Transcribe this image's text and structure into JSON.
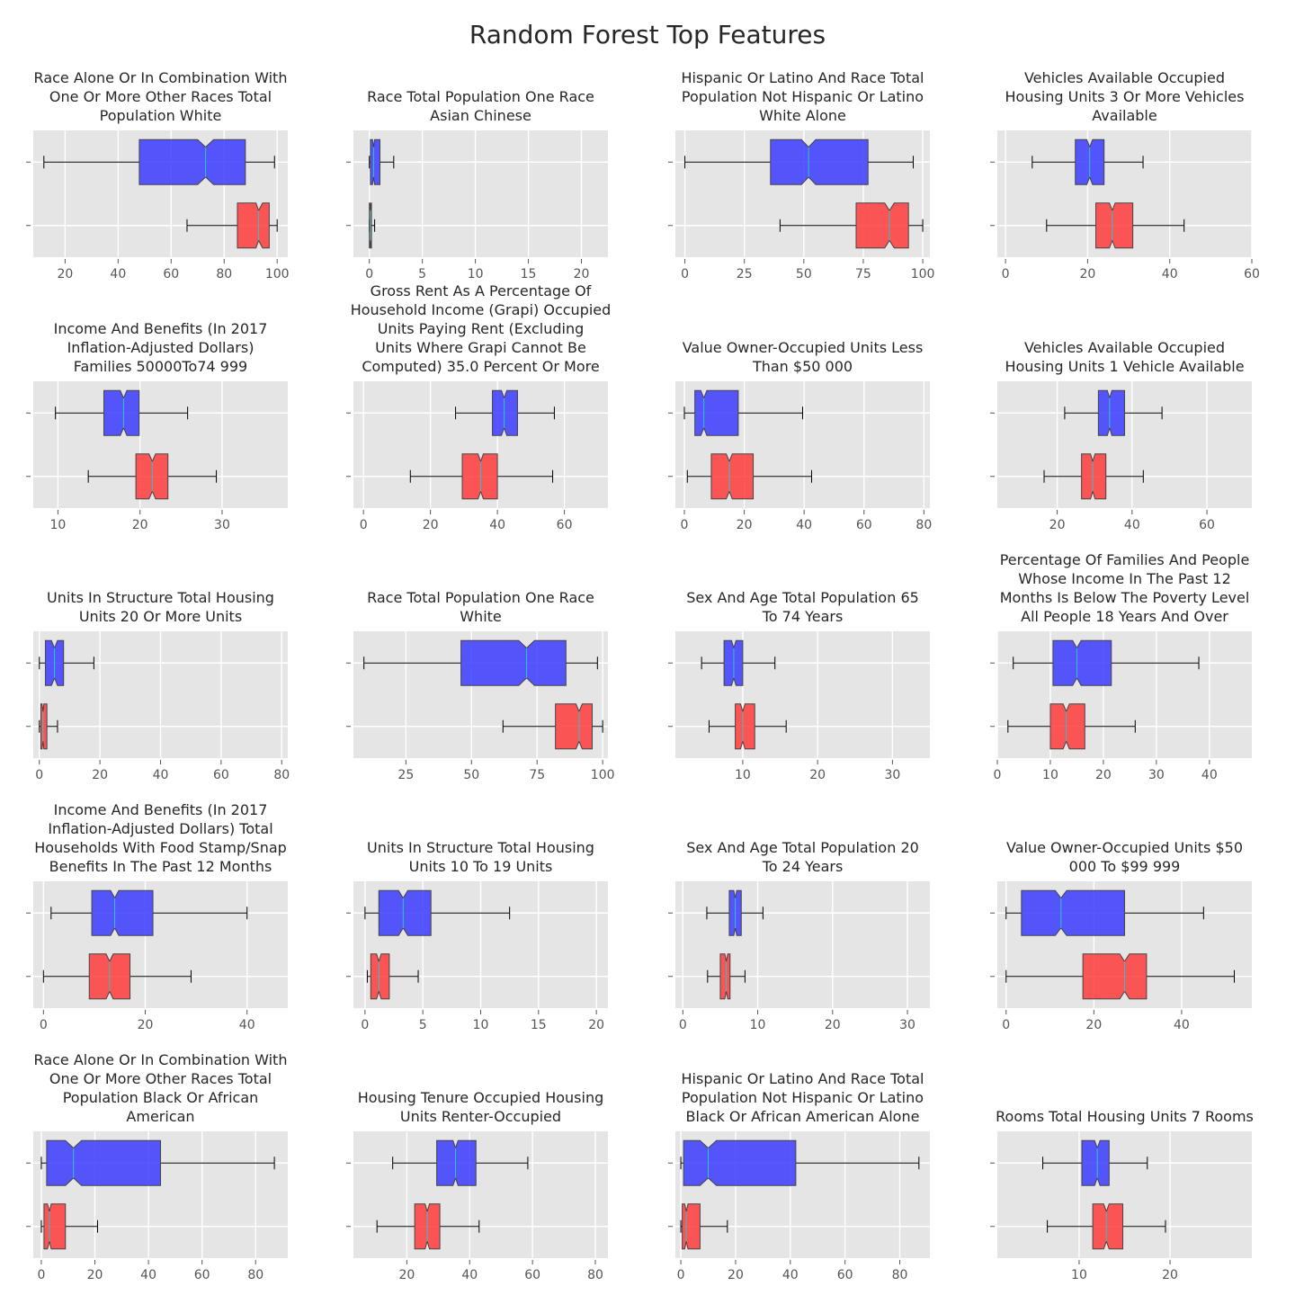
{
  "figure": {
    "title": "Random Forest Top Features"
  },
  "colors": {
    "panel_bg": "#e5e5e5",
    "grid": "#ffffff",
    "box_top": "#3b3bff",
    "box_bottom": "#ff3b3b",
    "box_alpha": 0.85,
    "median": "#2ec4c4",
    "text": "#262626",
    "tick": "#555555"
  },
  "chart_data": [
    {
      "type": "box",
      "title": "Race Alone Or In Combination With One Or More Other Races Total Population White",
      "xlim": [
        8,
        104
      ],
      "ticks": [
        20,
        40,
        60,
        80,
        100
      ],
      "boxes": [
        {
          "whislo": 12,
          "q1": 48,
          "med": 73,
          "q3": 88,
          "whishi": 99,
          "notch_lo": 70,
          "notch_hi": 76
        },
        {
          "whislo": 66,
          "q1": 85,
          "med": 93,
          "q3": 97,
          "whishi": 100,
          "notch_lo": 92,
          "notch_hi": 94.5
        }
      ]
    },
    {
      "type": "box",
      "title": "Race Total Population One Race Asian Chinese",
      "xlim": [
        -1.5,
        22.5
      ],
      "ticks": [
        0,
        5,
        10,
        15,
        20
      ],
      "boxes": [
        {
          "whislo": 0,
          "q1": 0.1,
          "med": 0.4,
          "q3": 1.0,
          "whishi": 2.3,
          "notch_lo": 0.3,
          "notch_hi": 0.5
        },
        {
          "whislo": 0,
          "q1": 0,
          "med": 0.1,
          "q3": 0.2,
          "whishi": 0.5,
          "notch_lo": 0.05,
          "notch_hi": 0.15
        }
      ]
    },
    {
      "type": "box",
      "title": "Hispanic Or Latino And Race Total Population Not Hispanic Or Latino White Alone",
      "xlim": [
        -4,
        103
      ],
      "ticks": [
        0,
        25,
        50,
        75,
        100
      ],
      "boxes": [
        {
          "whislo": 0,
          "q1": 36,
          "med": 52,
          "q3": 77,
          "whishi": 96,
          "notch_lo": 49,
          "notch_hi": 55
        },
        {
          "whislo": 40,
          "q1": 72,
          "med": 86,
          "q3": 94,
          "whishi": 100,
          "notch_lo": 84,
          "notch_hi": 88
        }
      ]
    },
    {
      "type": "box",
      "title": "Vehicles Available Occupied Housing Units 3 Or More Vehicles Available",
      "xlim": [
        -2,
        60
      ],
      "ticks": [
        0,
        20,
        40,
        60
      ],
      "boxes": [
        {
          "whislo": 6.5,
          "q1": 17,
          "med": 20.5,
          "q3": 24,
          "whishi": 33.5,
          "notch_lo": 19.8,
          "notch_hi": 21.2
        },
        {
          "whislo": 10,
          "q1": 22,
          "med": 26,
          "q3": 31,
          "whishi": 43.5,
          "notch_lo": 25.3,
          "notch_hi": 26.7
        }
      ]
    },
    {
      "type": "box",
      "title": "Income And Benefits (In 2017 Inflation-Adjusted Dollars) Families 50000To74 999",
      "xlim": [
        7,
        38
      ],
      "ticks": [
        10,
        20,
        30
      ],
      "boxes": [
        {
          "whislo": 9.7,
          "q1": 15.6,
          "med": 18,
          "q3": 19.9,
          "whishi": 25.8,
          "notch_lo": 17.6,
          "notch_hi": 18.4
        },
        {
          "whislo": 13.7,
          "q1": 19.5,
          "med": 21.5,
          "q3": 23.4,
          "whishi": 29.3,
          "notch_lo": 21.1,
          "notch_hi": 21.9
        }
      ]
    },
    {
      "type": "box",
      "title": "Gross Rent As A Percentage Of Household Income (Grapi) Occupied Units Paying Rent (Excluding Units Where Grapi Cannot Be Computed) 35.0 Percent Or More",
      "xlim": [
        -3,
        73
      ],
      "ticks": [
        0,
        20,
        40,
        60
      ],
      "boxes": [
        {
          "whislo": 27.5,
          "q1": 38.5,
          "med": 42,
          "q3": 46,
          "whishi": 57,
          "notch_lo": 41.2,
          "notch_hi": 42.8
        },
        {
          "whislo": 14,
          "q1": 29.5,
          "med": 35,
          "q3": 40,
          "whishi": 56.5,
          "notch_lo": 34.2,
          "notch_hi": 35.8
        }
      ]
    },
    {
      "type": "box",
      "title": "Value Owner-Occupied Units Less Than $50 000",
      "xlim": [
        -3,
        82
      ],
      "ticks": [
        0,
        20,
        40,
        60,
        80
      ],
      "boxes": [
        {
          "whislo": 0,
          "q1": 3.5,
          "med": 6.5,
          "q3": 18,
          "whishi": 39.5,
          "notch_lo": 5.5,
          "notch_hi": 7.5
        },
        {
          "whislo": 1,
          "q1": 9,
          "med": 15,
          "q3": 23,
          "whishi": 42.5,
          "notch_lo": 14,
          "notch_hi": 16
        }
      ]
    },
    {
      "type": "box",
      "title": "Vehicles Available Occupied Housing Units 1 Vehicle Available",
      "xlim": [
        4,
        72
      ],
      "ticks": [
        20,
        40,
        60
      ],
      "boxes": [
        {
          "whislo": 22,
          "q1": 31,
          "med": 34,
          "q3": 38,
          "whishi": 48,
          "notch_lo": 33.4,
          "notch_hi": 34.6
        },
        {
          "whislo": 16.5,
          "q1": 26.5,
          "med": 29.5,
          "q3": 33,
          "whishi": 43,
          "notch_lo": 28.9,
          "notch_hi": 30.1
        }
      ]
    },
    {
      "type": "box",
      "title": "Units In Structure Total Housing Units 20 Or More Units",
      "xlim": [
        -2,
        82
      ],
      "ticks": [
        0,
        20,
        40,
        60,
        80
      ],
      "boxes": [
        {
          "whislo": 0,
          "q1": 2,
          "med": 5,
          "q3": 8,
          "whishi": 18,
          "notch_lo": 4,
          "notch_hi": 6
        },
        {
          "whislo": 0,
          "q1": 0.5,
          "med": 1.2,
          "q3": 2.5,
          "whishi": 6,
          "notch_lo": 0.9,
          "notch_hi": 1.5
        }
      ]
    },
    {
      "type": "box",
      "title": "Race Total Population One Race White",
      "xlim": [
        5,
        102
      ],
      "ticks": [
        25,
        50,
        75,
        100
      ],
      "boxes": [
        {
          "whislo": 9,
          "q1": 46,
          "med": 71,
          "q3": 86,
          "whishi": 98,
          "notch_lo": 68,
          "notch_hi": 74
        },
        {
          "whislo": 62,
          "q1": 82,
          "med": 91,
          "q3": 96,
          "whishi": 100,
          "notch_lo": 89.8,
          "notch_hi": 92.2
        }
      ]
    },
    {
      "type": "box",
      "title": "Sex And Age Total Population 65 To 74 Years",
      "xlim": [
        1,
        35
      ],
      "ticks": [
        10,
        20,
        30
      ],
      "boxes": [
        {
          "whislo": 4.5,
          "q1": 7.5,
          "med": 8.8,
          "q3": 10,
          "whishi": 14.3,
          "notch_lo": 8.5,
          "notch_hi": 9.1
        },
        {
          "whislo": 5.5,
          "q1": 9,
          "med": 10,
          "q3": 11.6,
          "whishi": 15.8,
          "notch_lo": 9.7,
          "notch_hi": 10.3
        }
      ]
    },
    {
      "type": "box",
      "title": "Percentage Of Families And People Whose Income In The Past 12 Months Is Below The Poverty Level All People 18 Years And Over",
      "xlim": [
        0,
        48
      ],
      "ticks": [
        0,
        10,
        20,
        30,
        40
      ],
      "boxes": [
        {
          "whislo": 3,
          "q1": 10.5,
          "med": 15,
          "q3": 21.5,
          "whishi": 38,
          "notch_lo": 14.2,
          "notch_hi": 15.8
        },
        {
          "whislo": 2,
          "q1": 10,
          "med": 13,
          "q3": 16.5,
          "whishi": 26,
          "notch_lo": 12.4,
          "notch_hi": 13.6
        }
      ]
    },
    {
      "type": "box",
      "title": "Income And Benefits (In 2017 Inflation-Adjusted Dollars) Total Households With Food Stamp/Snap Benefits In The Past 12 Months",
      "xlim": [
        -2,
        48
      ],
      "ticks": [
        0,
        20,
        40
      ],
      "boxes": [
        {
          "whislo": 1.5,
          "q1": 9.5,
          "med": 14,
          "q3": 21.5,
          "whishi": 40,
          "notch_lo": 13.2,
          "notch_hi": 14.8
        },
        {
          "whislo": 0,
          "q1": 9,
          "med": 13,
          "q3": 17,
          "whishi": 29,
          "notch_lo": 12.3,
          "notch_hi": 13.7
        }
      ]
    },
    {
      "type": "box",
      "title": "Units In Structure Total Housing Units 10 To 19 Units",
      "xlim": [
        -1,
        21
      ],
      "ticks": [
        0,
        5,
        10,
        15,
        20
      ],
      "boxes": [
        {
          "whislo": 0,
          "q1": 1.2,
          "med": 3.3,
          "q3": 5.7,
          "whishi": 12.5,
          "notch_lo": 2.9,
          "notch_hi": 3.7
        },
        {
          "whislo": 0.2,
          "q1": 0.5,
          "med": 1.2,
          "q3": 2.1,
          "whishi": 4.6,
          "notch_lo": 1.0,
          "notch_hi": 1.4
        }
      ]
    },
    {
      "type": "box",
      "title": "Sex And Age Total Population 20 To 24 Years",
      "xlim": [
        -1,
        33
      ],
      "ticks": [
        0,
        10,
        20,
        30
      ],
      "boxes": [
        {
          "whislo": 3.2,
          "q1": 6.2,
          "med": 7,
          "q3": 7.8,
          "whishi": 10.7,
          "notch_lo": 6.8,
          "notch_hi": 7.2
        },
        {
          "whislo": 3.3,
          "q1": 5,
          "med": 5.8,
          "q3": 6.3,
          "whishi": 8.3,
          "notch_lo": 5.6,
          "notch_hi": 6.0
        }
      ]
    },
    {
      "type": "box",
      "title": "Value Owner-Occupied Units $50 000 To $99 999",
      "xlim": [
        -2,
        56
      ],
      "ticks": [
        0,
        20,
        40
      ],
      "boxes": [
        {
          "whislo": 0,
          "q1": 3.5,
          "med": 12.5,
          "q3": 27,
          "whishi": 45,
          "notch_lo": 11.2,
          "notch_hi": 13.8
        },
        {
          "whislo": 0,
          "q1": 17.5,
          "med": 27,
          "q3": 32,
          "whishi": 52,
          "notch_lo": 25.9,
          "notch_hi": 28.1
        }
      ]
    },
    {
      "type": "box",
      "title": "Race Alone Or In Combination With One Or More Other Races Total Population Black Or African American",
      "xlim": [
        -3,
        92
      ],
      "ticks": [
        0,
        20,
        40,
        60,
        80
      ],
      "boxes": [
        {
          "whislo": 0,
          "q1": 2,
          "med": 12,
          "q3": 44.5,
          "whishi": 87,
          "notch_lo": 9,
          "notch_hi": 15
        },
        {
          "whislo": 0,
          "q1": 1,
          "med": 3,
          "q3": 9,
          "whishi": 21,
          "notch_lo": 2.3,
          "notch_hi": 3.7
        }
      ]
    },
    {
      "type": "box",
      "title": "Housing Tenure Occupied Housing Units Renter-Occupied",
      "xlim": [
        3,
        84
      ],
      "ticks": [
        20,
        40,
        60,
        80
      ],
      "boxes": [
        {
          "whislo": 15.5,
          "q1": 29.5,
          "med": 35.5,
          "q3": 42,
          "whishi": 58.5,
          "notch_lo": 34.7,
          "notch_hi": 36.3
        },
        {
          "whislo": 10.5,
          "q1": 22.5,
          "med": 26.5,
          "q3": 30.5,
          "whishi": 43,
          "notch_lo": 25.8,
          "notch_hi": 27.2
        }
      ]
    },
    {
      "type": "box",
      "title": "Hispanic Or Latino And Race Total Population Not Hispanic Or Latino Black Or African American Alone",
      "xlim": [
        -2,
        91
      ],
      "ticks": [
        0,
        20,
        40,
        60,
        80
      ],
      "boxes": [
        {
          "whislo": 0,
          "q1": 1,
          "med": 10,
          "q3": 42,
          "whishi": 87,
          "notch_lo": 7,
          "notch_hi": 13
        },
        {
          "whislo": 0,
          "q1": 0.5,
          "med": 2,
          "q3": 7,
          "whishi": 17,
          "notch_lo": 1.4,
          "notch_hi": 2.6
        }
      ]
    },
    {
      "type": "box",
      "title": "Rooms Total Housing Units 7 Rooms",
      "xlim": [
        1,
        29
      ],
      "ticks": [
        10,
        20
      ],
      "boxes": [
        {
          "whislo": 6,
          "q1": 10.3,
          "med": 12,
          "q3": 13.3,
          "whishi": 17.5,
          "notch_lo": 11.7,
          "notch_hi": 12.3
        },
        {
          "whislo": 6.5,
          "q1": 11.5,
          "med": 13,
          "q3": 14.8,
          "whishi": 19.5,
          "notch_lo": 12.7,
          "notch_hi": 13.3
        }
      ]
    }
  ]
}
